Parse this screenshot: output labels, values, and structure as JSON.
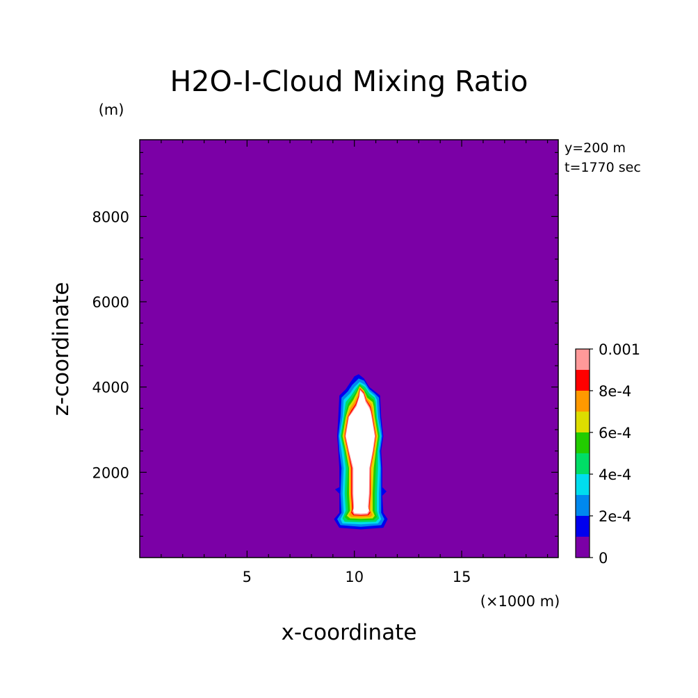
{
  "chart_data": {
    "type": "heatmap",
    "title": "H2O-I-Cloud Mixing Ratio",
    "xlabel": "x-coordinate",
    "ylabel": "z-coordinate",
    "x_unit": "(×1000 m)",
    "y_unit": "(m)",
    "annotations": [
      "y=200 m",
      "t=1770 sec"
    ],
    "xlim": [
      0,
      19.5
    ],
    "ylim": [
      0,
      9800
    ],
    "x_ticks": [
      5,
      10,
      15
    ],
    "y_ticks": [
      2000,
      4000,
      6000,
      8000
    ],
    "grid": false,
    "legend_position": "right",
    "colorbar": {
      "levels": [
        0,
        0.0001,
        0.0002,
        0.0003,
        0.0004,
        0.0005,
        0.0006,
        0.0007,
        0.0008,
        0.0009,
        0.001
      ],
      "colors": [
        "#7b00a6",
        "#0000ee",
        "#0088ee",
        "#00ddee",
        "#00dd66",
        "#22cc00",
        "#dddd00",
        "#ff9900",
        "#ff0000",
        "#ff9999"
      ],
      "tick_labels": [
        "0",
        "2e-4",
        "4e-4",
        "6e-4",
        "8e-4",
        "0.001"
      ],
      "above_max_color": "#ffffff"
    },
    "contours": [
      {
        "level": 0.0001,
        "color": "#0000ee",
        "points": [
          [
            9.05,
            900
          ],
          [
            9.3,
            1050
          ],
          [
            9.3,
            1500
          ],
          [
            9.1,
            1600
          ],
          [
            9.3,
            1650
          ],
          [
            9.3,
            2100
          ],
          [
            9.25,
            2500
          ],
          [
            9.2,
            2850
          ],
          [
            9.25,
            3300
          ],
          [
            9.3,
            3800
          ],
          [
            9.6,
            3950
          ],
          [
            9.8,
            4100
          ],
          [
            10.0,
            4250
          ],
          [
            10.2,
            4300
          ],
          [
            10.45,
            4200
          ],
          [
            10.7,
            4000
          ],
          [
            10.95,
            3900
          ],
          [
            11.2,
            3800
          ],
          [
            11.25,
            3300
          ],
          [
            11.35,
            2850
          ],
          [
            11.25,
            2500
          ],
          [
            11.3,
            2100
          ],
          [
            11.3,
            1650
          ],
          [
            11.5,
            1550
          ],
          [
            11.3,
            1450
          ],
          [
            11.35,
            1050
          ],
          [
            11.55,
            900
          ],
          [
            11.35,
            700
          ],
          [
            10.3,
            660
          ],
          [
            9.3,
            700
          ]
        ]
      },
      {
        "level": 0.0002,
        "color": "#0088ee",
        "points": [
          [
            9.2,
            900
          ],
          [
            9.4,
            1050
          ],
          [
            9.35,
            1500
          ],
          [
            9.4,
            2100
          ],
          [
            9.3,
            2500
          ],
          [
            9.25,
            2850
          ],
          [
            9.35,
            3300
          ],
          [
            9.4,
            3750
          ],
          [
            9.7,
            3900
          ],
          [
            9.9,
            4050
          ],
          [
            10.2,
            4200
          ],
          [
            10.45,
            4150
          ],
          [
            10.7,
            3950
          ],
          [
            10.95,
            3850
          ],
          [
            11.15,
            3750
          ],
          [
            11.2,
            3300
          ],
          [
            11.3,
            2850
          ],
          [
            11.2,
            2500
          ],
          [
            11.25,
            2100
          ],
          [
            11.25,
            1500
          ],
          [
            11.25,
            1050
          ],
          [
            11.4,
            900
          ],
          [
            11.25,
            760
          ],
          [
            10.3,
            720
          ],
          [
            9.35,
            760
          ]
        ]
      },
      {
        "level": 0.0003,
        "color": "#00ddee",
        "points": [
          [
            9.35,
            900
          ],
          [
            9.5,
            1050
          ],
          [
            9.45,
            1500
          ],
          [
            9.5,
            2100
          ],
          [
            9.4,
            2500
          ],
          [
            9.3,
            2850
          ],
          [
            9.45,
            3300
          ],
          [
            9.5,
            3700
          ],
          [
            9.8,
            3850
          ],
          [
            10.0,
            4000
          ],
          [
            10.25,
            4120
          ],
          [
            10.5,
            4050
          ],
          [
            10.7,
            3900
          ],
          [
            10.95,
            3800
          ],
          [
            11.05,
            3700
          ],
          [
            11.1,
            3300
          ],
          [
            11.25,
            2850
          ],
          [
            11.15,
            2500
          ],
          [
            11.2,
            2100
          ],
          [
            11.15,
            1500
          ],
          [
            11.15,
            1050
          ],
          [
            11.25,
            900
          ],
          [
            11.1,
            800
          ],
          [
            10.3,
            780
          ],
          [
            9.45,
            800
          ]
        ]
      },
      {
        "level": 0.0004,
        "color": "#00dd66",
        "points": [
          [
            9.45,
            920
          ],
          [
            9.6,
            1100
          ],
          [
            9.55,
            1500
          ],
          [
            9.6,
            2100
          ],
          [
            9.5,
            2500
          ],
          [
            9.35,
            2850
          ],
          [
            9.5,
            3300
          ],
          [
            9.6,
            3650
          ],
          [
            9.85,
            3800
          ],
          [
            10.05,
            3950
          ],
          [
            10.25,
            4080
          ],
          [
            10.5,
            4000
          ],
          [
            10.7,
            3850
          ],
          [
            10.95,
            3750
          ],
          [
            11.0,
            3650
          ],
          [
            11.05,
            3300
          ],
          [
            11.2,
            2850
          ],
          [
            11.1,
            2500
          ],
          [
            11.1,
            2100
          ],
          [
            11.05,
            1500
          ],
          [
            11.05,
            1100
          ],
          [
            11.15,
            920
          ],
          [
            11.0,
            840
          ],
          [
            10.3,
            830
          ],
          [
            9.55,
            840
          ]
        ]
      },
      {
        "level": 0.0005,
        "color": "#22cc00",
        "points": [
          [
            9.55,
            950
          ],
          [
            9.7,
            1100
          ],
          [
            9.65,
            1500
          ],
          [
            9.7,
            2100
          ],
          [
            9.55,
            2500
          ],
          [
            9.4,
            2850
          ],
          [
            9.55,
            3300
          ],
          [
            9.7,
            3600
          ],
          [
            9.9,
            3750
          ],
          [
            10.1,
            3900
          ],
          [
            10.25,
            4050
          ],
          [
            10.45,
            3950
          ],
          [
            10.65,
            3800
          ],
          [
            10.9,
            3700
          ],
          [
            10.95,
            3600
          ],
          [
            11.0,
            3300
          ],
          [
            11.15,
            2850
          ],
          [
            11.05,
            2500
          ],
          [
            11.0,
            2100
          ],
          [
            10.95,
            1500
          ],
          [
            10.95,
            1100
          ],
          [
            11.05,
            950
          ],
          [
            10.9,
            880
          ],
          [
            10.3,
            870
          ],
          [
            9.7,
            880
          ]
        ]
      },
      {
        "level": 0.0006,
        "color": "#dddd00",
        "points": [
          [
            9.65,
            980
          ],
          [
            9.8,
            1100
          ],
          [
            9.75,
            1500
          ],
          [
            9.75,
            2100
          ],
          [
            9.6,
            2500
          ],
          [
            9.45,
            2850
          ],
          [
            9.6,
            3300
          ],
          [
            9.75,
            3550
          ],
          [
            9.95,
            3700
          ],
          [
            10.1,
            3850
          ],
          [
            10.25,
            4020
          ],
          [
            10.45,
            3920
          ],
          [
            10.6,
            3750
          ],
          [
            10.85,
            3650
          ],
          [
            10.9,
            3550
          ],
          [
            10.95,
            3300
          ],
          [
            11.1,
            2850
          ],
          [
            11.0,
            2500
          ],
          [
            10.9,
            2100
          ],
          [
            10.85,
            1500
          ],
          [
            10.85,
            1100
          ],
          [
            10.95,
            980
          ],
          [
            10.85,
            920
          ],
          [
            10.3,
            910
          ],
          [
            9.8,
            920
          ]
        ]
      },
      {
        "level": 0.0007,
        "color": "#ff9900",
        "points": [
          [
            9.75,
            1000
          ],
          [
            9.85,
            1100
          ],
          [
            9.8,
            1500
          ],
          [
            9.8,
            2100
          ],
          [
            9.65,
            2500
          ],
          [
            9.5,
            2850
          ],
          [
            9.65,
            3300
          ],
          [
            9.8,
            3500
          ],
          [
            10.0,
            3650
          ],
          [
            10.15,
            3800
          ],
          [
            10.25,
            4000
          ],
          [
            10.45,
            3900
          ],
          [
            10.6,
            3720
          ],
          [
            10.8,
            3600
          ],
          [
            10.85,
            3500
          ],
          [
            10.9,
            3300
          ],
          [
            11.05,
            2850
          ],
          [
            10.95,
            2500
          ],
          [
            10.8,
            2100
          ],
          [
            10.8,
            1500
          ],
          [
            10.75,
            1100
          ],
          [
            10.85,
            1000
          ],
          [
            10.75,
            950
          ],
          [
            10.3,
            940
          ],
          [
            9.85,
            950
          ]
        ]
      },
      {
        "level": 0.0008,
        "color": "#ff0000",
        "points": [
          [
            9.85,
            1050
          ],
          [
            9.9,
            1150
          ],
          [
            9.85,
            1500
          ],
          [
            9.85,
            2100
          ],
          [
            9.7,
            2500
          ],
          [
            9.55,
            2850
          ],
          [
            9.7,
            3300
          ],
          [
            9.85,
            3450
          ],
          [
            10.05,
            3600
          ],
          [
            10.2,
            3800
          ],
          [
            10.25,
            3970
          ],
          [
            10.45,
            3870
          ],
          [
            10.55,
            3700
          ],
          [
            10.75,
            3550
          ],
          [
            10.8,
            3450
          ],
          [
            10.85,
            3300
          ],
          [
            11.0,
            2850
          ],
          [
            10.9,
            2500
          ],
          [
            10.75,
            2100
          ],
          [
            10.75,
            1500
          ],
          [
            10.7,
            1150
          ],
          [
            10.75,
            1050
          ],
          [
            10.65,
            990
          ],
          [
            10.3,
            980
          ],
          [
            9.95,
            990
          ]
        ]
      },
      {
        "level": 0.0009,
        "color": "#ff9999",
        "points": [
          [
            9.9,
            1080
          ],
          [
            9.95,
            1150
          ],
          [
            9.9,
            1500
          ],
          [
            9.9,
            2100
          ],
          [
            9.72,
            2500
          ],
          [
            9.57,
            2850
          ],
          [
            9.72,
            3300
          ],
          [
            9.88,
            3420
          ],
          [
            10.08,
            3580
          ],
          [
            10.22,
            3780
          ],
          [
            10.26,
            3950
          ],
          [
            10.44,
            3850
          ],
          [
            10.54,
            3680
          ],
          [
            10.72,
            3530
          ],
          [
            10.78,
            3430
          ],
          [
            10.83,
            3300
          ],
          [
            10.98,
            2850
          ],
          [
            10.88,
            2500
          ],
          [
            10.73,
            2100
          ],
          [
            10.72,
            1500
          ],
          [
            10.67,
            1150
          ],
          [
            10.72,
            1080
          ],
          [
            10.62,
            1010
          ],
          [
            10.3,
            1000
          ],
          [
            9.98,
            1010
          ]
        ]
      },
      {
        "level": 0.001,
        "color": "#ffffff",
        "points": [
          [
            9.95,
            1100
          ],
          [
            9.98,
            1200
          ],
          [
            9.95,
            1500
          ],
          [
            9.95,
            2100
          ],
          [
            9.75,
            2500
          ],
          [
            9.6,
            2850
          ],
          [
            9.75,
            3300
          ],
          [
            9.9,
            3400
          ],
          [
            10.1,
            3550
          ],
          [
            10.22,
            3750
          ],
          [
            10.27,
            3920
          ],
          [
            10.42,
            3830
          ],
          [
            10.52,
            3650
          ],
          [
            10.7,
            3500
          ],
          [
            10.76,
            3400
          ],
          [
            10.8,
            3300
          ],
          [
            10.95,
            2850
          ],
          [
            10.85,
            2500
          ],
          [
            10.7,
            2100
          ],
          [
            10.68,
            1500
          ],
          [
            10.63,
            1200
          ],
          [
            10.68,
            1100
          ],
          [
            10.6,
            1040
          ],
          [
            10.3,
            1030
          ],
          [
            10.0,
            1040
          ]
        ]
      }
    ]
  }
}
